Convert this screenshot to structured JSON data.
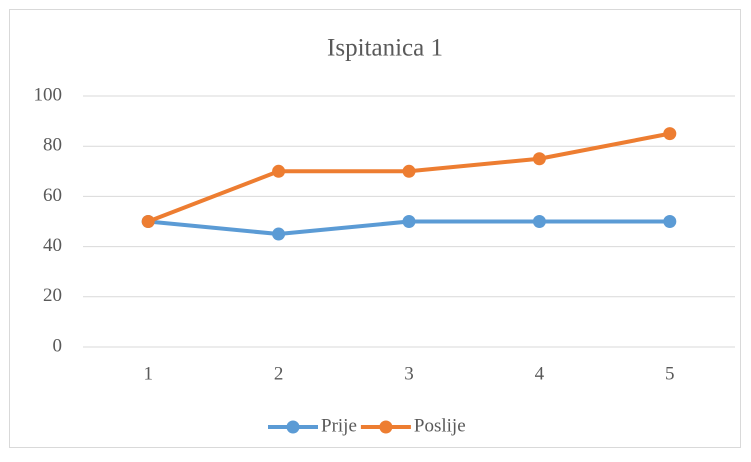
{
  "chart_data": {
    "type": "line",
    "title": "Ispitanica 1",
    "categories": [
      "1",
      "2",
      "3",
      "4",
      "5"
    ],
    "series": [
      {
        "name": "Prije",
        "color": "#5b9bd5",
        "values": [
          50,
          45,
          50,
          50,
          50
        ]
      },
      {
        "name": "Poslije",
        "color": "#ed7d31",
        "values": [
          50,
          70,
          70,
          75,
          85
        ]
      }
    ],
    "ylim": [
      0,
      100
    ],
    "yticks": [
      0,
      20,
      40,
      60,
      80,
      100
    ],
    "grid": true,
    "legend": "bottom"
  }
}
